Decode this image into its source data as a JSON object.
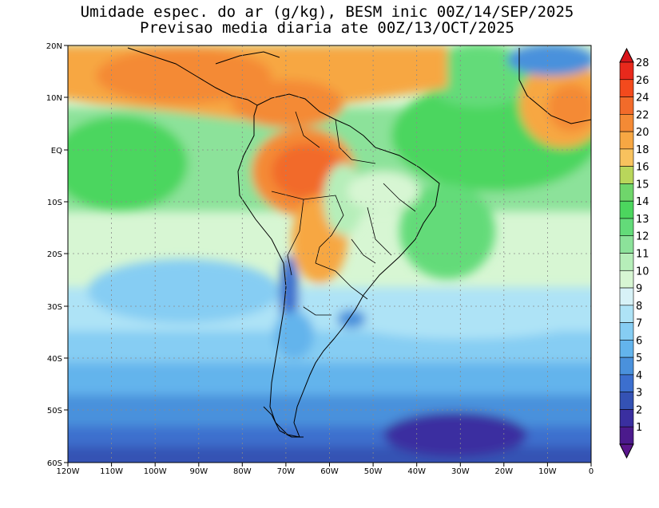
{
  "title": {
    "line1": "Umidade espec. do ar (g/kg), BESM inic 00Z/14/SEP/2025",
    "line2": "Previsao media diaria ate 00Z/13/OCT/2025"
  },
  "axes": {
    "lat_labels": [
      "20N",
      "10N",
      "EQ",
      "10S",
      "20S",
      "30S",
      "40S",
      "50S",
      "60S"
    ],
    "lon_labels": [
      "120W",
      "110W",
      "100W",
      "90W",
      "80W",
      "70W",
      "60W",
      "50W",
      "40W",
      "30W",
      "20W",
      "10W",
      "0"
    ]
  },
  "colorbar": {
    "levels": [
      "28",
      "26",
      "24",
      "22",
      "20",
      "18",
      "16",
      "15",
      "14",
      "13",
      "12",
      "11",
      "10",
      "9",
      "8",
      "7",
      "6",
      "5",
      "4",
      "3",
      "2",
      "1"
    ],
    "colors": [
      "#e8291c",
      "#f34a1d",
      "#f26b2a",
      "#f48a35",
      "#f7a743",
      "#f8c25e",
      "#b9d65b",
      "#6fd66b",
      "#4cd65e",
      "#63db79",
      "#8ce29a",
      "#b6eeb9",
      "#d7f6d3",
      "#d7f2f7",
      "#aee3f6",
      "#86cdf3",
      "#63b4ec",
      "#4a91dc",
      "#3c6fce",
      "#3452b4",
      "#3a2fa0",
      "#4b1a8c"
    ],
    "over_color": "#d8141a",
    "under_color": "#5a168c"
  },
  "map_colors": {
    "ocean_south": "#3c6fce",
    "land_border": "#000000",
    "grid": "#8a8a8a"
  }
}
